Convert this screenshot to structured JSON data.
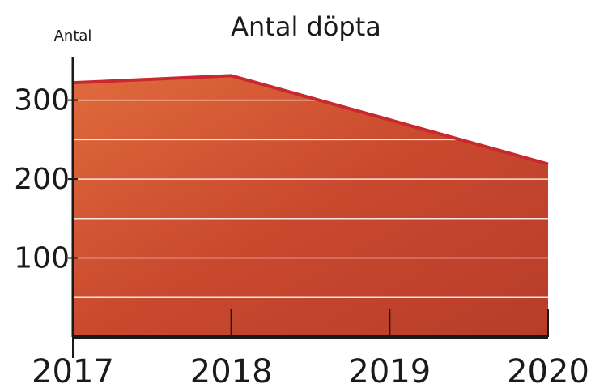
{
  "chart_data": {
    "type": "area",
    "title": "Antal döpta",
    "y_label": "Antal",
    "x": [
      2017,
      2018,
      2019,
      2020
    ],
    "values": [
      322,
      331,
      275,
      219
    ],
    "color": "#c8282e",
    "fill": "#d9552e",
    "xlim": [
      2017,
      2020
    ],
    "xticks": [
      2017,
      2018,
      2019,
      2020
    ],
    "ylim": [
      0,
      355
    ],
    "yticks": [
      100,
      200,
      300
    ],
    "grid_lines": [
      50,
      100,
      150,
      200,
      250,
      300
    ]
  }
}
